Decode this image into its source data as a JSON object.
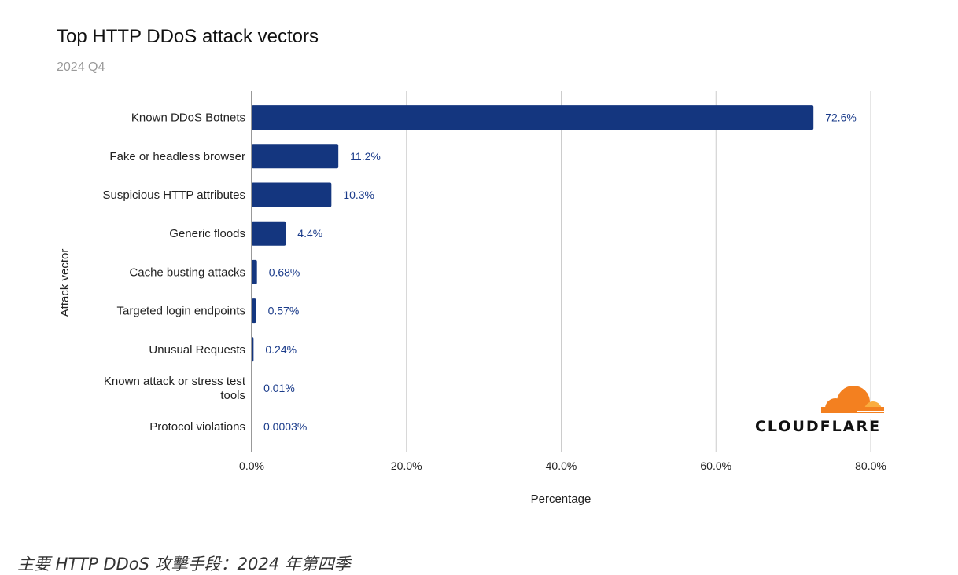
{
  "chart_data": {
    "type": "bar",
    "orientation": "horizontal",
    "title": "Top HTTP DDoS attack vectors",
    "subtitle": "2024 Q4",
    "xlabel": "Percentage",
    "ylabel": "Attack vector",
    "categories": [
      [
        "Known DDoS Botnets"
      ],
      [
        "Fake or headless browser"
      ],
      [
        "Suspicious HTTP attributes"
      ],
      [
        "Generic floods"
      ],
      [
        "Cache busting attacks"
      ],
      [
        "Targeted login endpoints"
      ],
      [
        "Unusual Requests"
      ],
      [
        "Known attack or stress test",
        "tools"
      ],
      [
        "Protocol violations"
      ]
    ],
    "values": [
      72.6,
      11.2,
      10.3,
      4.4,
      0.68,
      0.57,
      0.24,
      0.01,
      0.0003
    ],
    "value_labels": [
      "72.6%",
      "11.2%",
      "10.3%",
      "4.4%",
      "0.68%",
      "0.57%",
      "0.24%",
      "0.01%",
      "0.0003%"
    ],
    "xlim": [
      0,
      80
    ],
    "xticks": [
      0,
      20,
      40,
      60,
      80
    ],
    "xtick_labels": [
      "0.0%",
      "20.0%",
      "40.0%",
      "60.0%",
      "80.0%"
    ],
    "grid": "vertical",
    "bar_color": "#14367f",
    "label_color": "#1a3b8a"
  },
  "logo": {
    "text": "CLOUDFLARE",
    "cloud_color": "#f38020"
  },
  "caption": "主要 HTTP DDoS 攻擊手段：2024 年第四季"
}
